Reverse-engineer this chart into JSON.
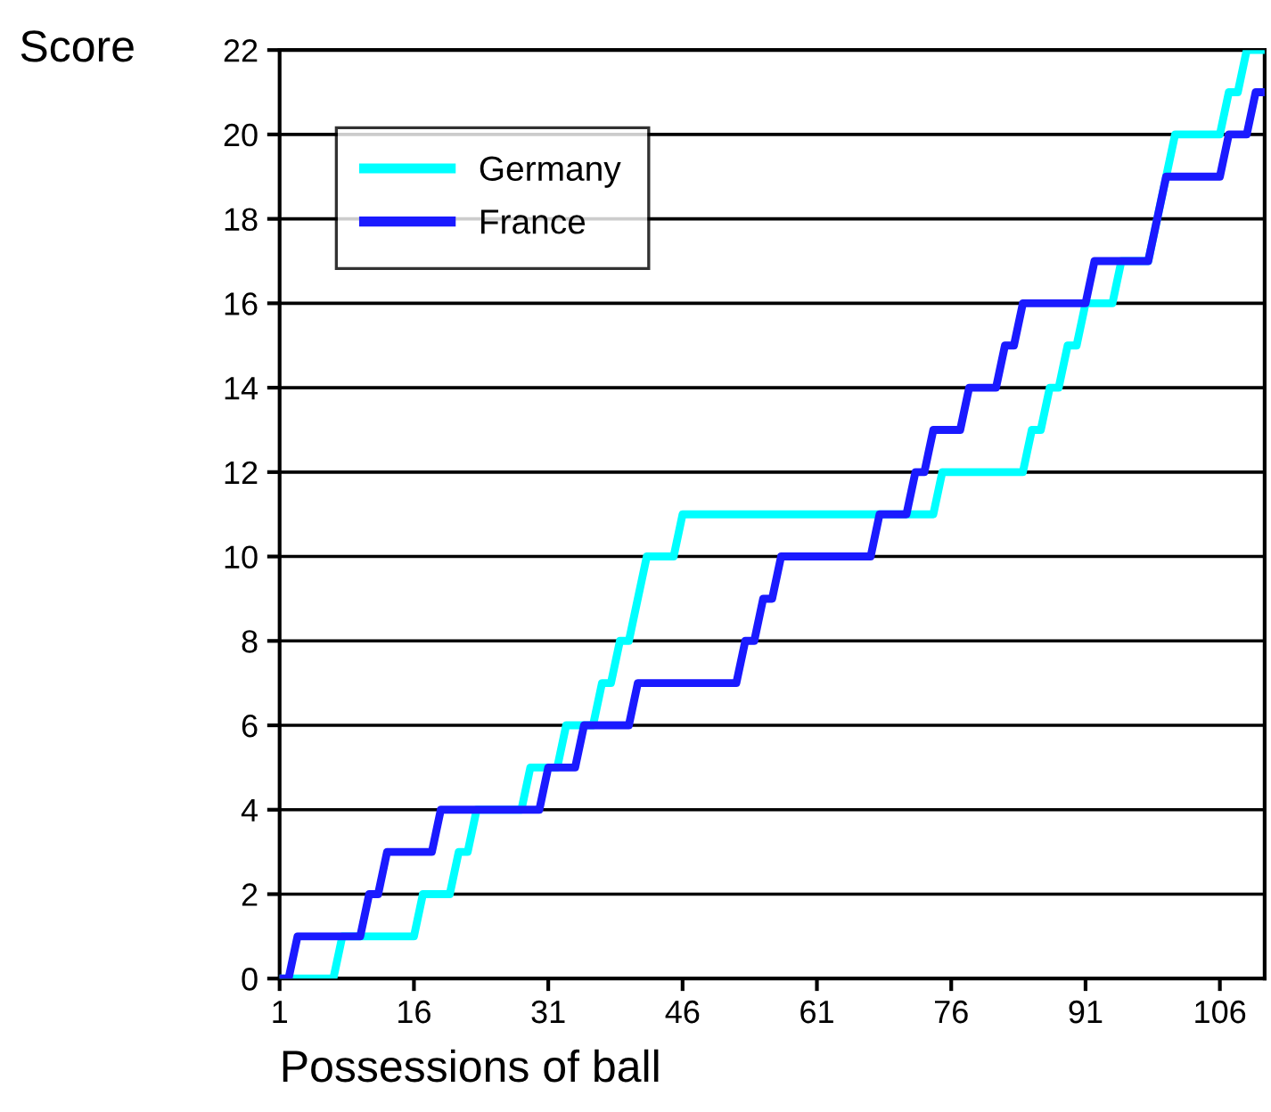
{
  "chart_data": {
    "type": "line",
    "ylabel": "Score",
    "xlabel": "Possessions of ball",
    "xlim": [
      1,
      111
    ],
    "xticks": [
      1,
      16,
      31,
      46,
      61,
      76,
      91,
      106
    ],
    "ylim": [
      0,
      22
    ],
    "yticks": [
      0,
      2,
      4,
      6,
      8,
      10,
      12,
      14,
      16,
      18,
      20,
      22
    ],
    "grid": "y",
    "legend": "top left",
    "marker": "none",
    "line_style": "solid",
    "series": [
      {
        "name": "Germany",
        "color": "#00ffff",
        "x": [
          1,
          7,
          8,
          16,
          17,
          20,
          21,
          22,
          23,
          28,
          29,
          32,
          33,
          36,
          37,
          38,
          39,
          40,
          41,
          42,
          45,
          46,
          74,
          75,
          84,
          85,
          86,
          87,
          88,
          89,
          90,
          91,
          94,
          95,
          98,
          99,
          100,
          101,
          106,
          107,
          108,
          109,
          111
        ],
        "values": [
          0,
          0,
          1,
          1,
          2,
          2,
          3,
          3,
          4,
          4,
          5,
          5,
          6,
          6,
          7,
          7,
          8,
          8,
          9,
          10,
          10,
          11,
          11,
          12,
          12,
          13,
          13,
          14,
          14,
          15,
          15,
          16,
          16,
          17,
          17,
          18,
          19,
          20,
          20,
          21,
          21,
          22,
          22
        ]
      },
      {
        "name": "France",
        "color": "#1a1aff",
        "x": [
          1,
          2,
          3,
          10,
          11,
          12,
          13,
          18,
          19,
          30,
          31,
          34,
          35,
          40,
          41,
          52,
          53,
          54,
          55,
          56,
          57,
          67,
          68,
          71,
          72,
          73,
          74,
          77,
          78,
          81,
          82,
          83,
          84,
          91,
          92,
          98,
          99,
          100,
          106,
          107,
          109,
          110,
          111
        ],
        "values": [
          0,
          0,
          1,
          1,
          2,
          2,
          3,
          3,
          4,
          4,
          5,
          5,
          6,
          6,
          7,
          7,
          8,
          8,
          9,
          9,
          10,
          10,
          11,
          11,
          12,
          12,
          13,
          13,
          14,
          14,
          15,
          15,
          16,
          16,
          17,
          17,
          18,
          19,
          19,
          20,
          20,
          21,
          21
        ]
      }
    ]
  }
}
